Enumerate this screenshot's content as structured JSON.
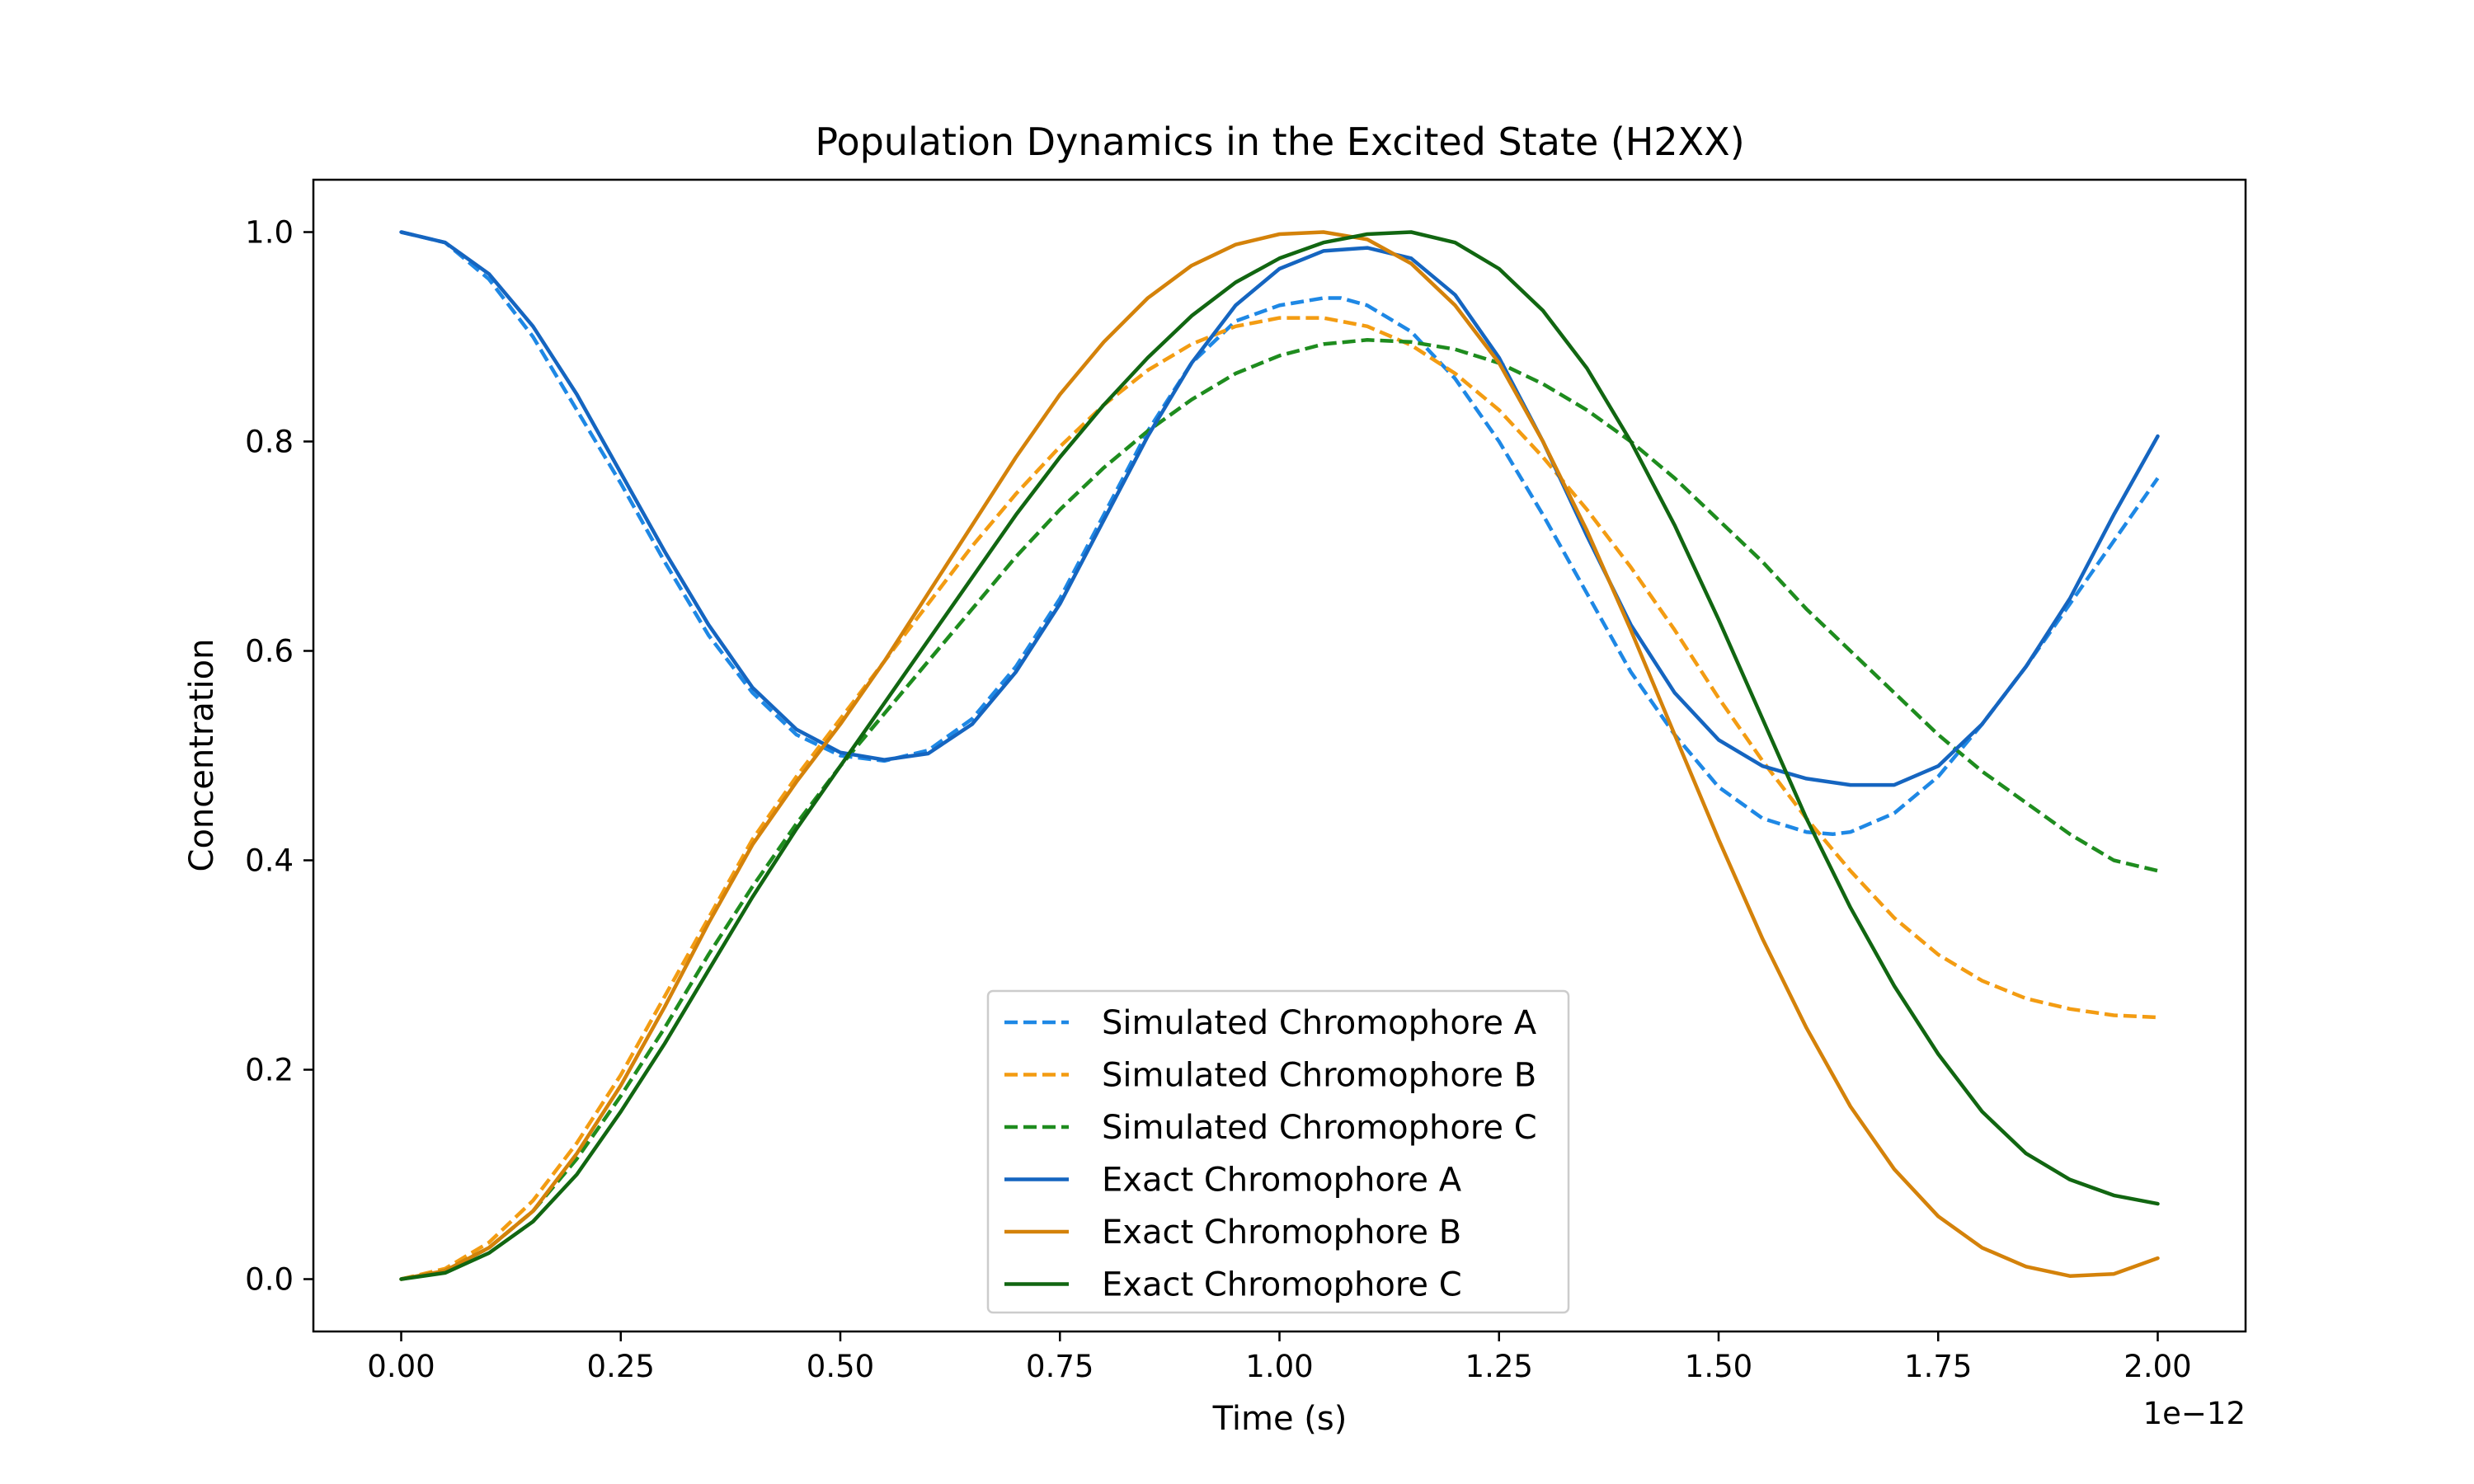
{
  "chart_data": {
    "type": "line",
    "title": "Population Dynamics in the Excited State (H2XX)",
    "xlabel": "Time (s)",
    "ylabel": "Concentration",
    "x_offset_label": "1e−12",
    "xlim": [
      -0.1,
      2.1
    ],
    "ylim": [
      -0.05,
      1.05
    ],
    "x_ticks": [
      0.0,
      0.25,
      0.5,
      0.75,
      1.0,
      1.25,
      1.5,
      1.75,
      2.0
    ],
    "x_tick_labels": [
      "0.00",
      "0.25",
      "0.50",
      "0.75",
      "1.00",
      "1.25",
      "1.50",
      "1.75",
      "2.00"
    ],
    "y_ticks": [
      0.0,
      0.2,
      0.4,
      0.6,
      0.8,
      1.0
    ],
    "y_tick_labels": [
      "0.0",
      "0.2",
      "0.4",
      "0.6",
      "0.8",
      "1.0"
    ],
    "grid": false,
    "legend_position": "lower-center",
    "series": [
      {
        "name": "Simulated Chromophore A",
        "color": "#1e88e5",
        "style": "dashed",
        "x": [
          0.0,
          0.05,
          0.1,
          0.15,
          0.2,
          0.25,
          0.3,
          0.35,
          0.4,
          0.45,
          0.5,
          0.55,
          0.6,
          0.65,
          0.7,
          0.75,
          0.8,
          0.85,
          0.9,
          0.95,
          1.0,
          1.05,
          1.07,
          1.1,
          1.15,
          1.2,
          1.25,
          1.3,
          1.35,
          1.4,
          1.45,
          1.5,
          1.55,
          1.6,
          1.63,
          1.65,
          1.7,
          1.75,
          1.8,
          1.85,
          1.9,
          1.95,
          2.0
        ],
        "y": [
          1.0,
          0.99,
          0.955,
          0.9,
          0.83,
          0.76,
          0.685,
          0.615,
          0.56,
          0.52,
          0.5,
          0.495,
          0.505,
          0.535,
          0.585,
          0.65,
          0.73,
          0.81,
          0.875,
          0.915,
          0.93,
          0.937,
          0.937,
          0.93,
          0.905,
          0.86,
          0.8,
          0.73,
          0.655,
          0.58,
          0.52,
          0.47,
          0.44,
          0.427,
          0.425,
          0.427,
          0.445,
          0.48,
          0.53,
          0.585,
          0.645,
          0.705,
          0.765
        ]
      },
      {
        "name": "Simulated Chromophore B",
        "color": "#f39c12",
        "style": "dashed",
        "x": [
          0.0,
          0.05,
          0.1,
          0.15,
          0.2,
          0.25,
          0.3,
          0.35,
          0.4,
          0.45,
          0.5,
          0.55,
          0.6,
          0.65,
          0.7,
          0.75,
          0.8,
          0.85,
          0.9,
          0.95,
          1.0,
          1.05,
          1.1,
          1.15,
          1.2,
          1.25,
          1.3,
          1.35,
          1.4,
          1.45,
          1.5,
          1.55,
          1.6,
          1.65,
          1.7,
          1.75,
          1.8,
          1.85,
          1.9,
          1.95,
          2.0
        ],
        "y": [
          0.0,
          0.01,
          0.035,
          0.075,
          0.13,
          0.195,
          0.27,
          0.345,
          0.42,
          0.48,
          0.535,
          0.59,
          0.645,
          0.7,
          0.75,
          0.795,
          0.835,
          0.868,
          0.893,
          0.91,
          0.918,
          0.918,
          0.91,
          0.892,
          0.865,
          0.83,
          0.785,
          0.735,
          0.68,
          0.62,
          0.555,
          0.495,
          0.44,
          0.39,
          0.345,
          0.31,
          0.285,
          0.268,
          0.258,
          0.252,
          0.25
        ]
      },
      {
        "name": "Simulated Chromophore C",
        "color": "#1e8c1e",
        "style": "dashed",
        "x": [
          0.0,
          0.05,
          0.1,
          0.15,
          0.2,
          0.25,
          0.3,
          0.35,
          0.4,
          0.45,
          0.5,
          0.55,
          0.6,
          0.65,
          0.7,
          0.75,
          0.8,
          0.85,
          0.9,
          0.95,
          1.0,
          1.05,
          1.1,
          1.15,
          1.2,
          1.25,
          1.3,
          1.35,
          1.4,
          1.45,
          1.5,
          1.55,
          1.6,
          1.65,
          1.7,
          1.75,
          1.8,
          1.85,
          1.9,
          1.95,
          2.0
        ],
        "y": [
          0.0,
          0.008,
          0.03,
          0.065,
          0.115,
          0.175,
          0.24,
          0.31,
          0.375,
          0.435,
          0.49,
          0.54,
          0.59,
          0.64,
          0.69,
          0.735,
          0.775,
          0.81,
          0.84,
          0.865,
          0.882,
          0.893,
          0.897,
          0.895,
          0.888,
          0.875,
          0.855,
          0.83,
          0.8,
          0.765,
          0.725,
          0.685,
          0.64,
          0.6,
          0.56,
          0.52,
          0.485,
          0.455,
          0.425,
          0.4,
          0.39
        ]
      },
      {
        "name": "Exact Chromophore A",
        "color": "#1565c0",
        "style": "solid",
        "x": [
          0.0,
          0.05,
          0.1,
          0.15,
          0.2,
          0.25,
          0.3,
          0.35,
          0.4,
          0.45,
          0.5,
          0.55,
          0.6,
          0.65,
          0.7,
          0.75,
          0.8,
          0.85,
          0.9,
          0.95,
          1.0,
          1.05,
          1.1,
          1.15,
          1.2,
          1.25,
          1.3,
          1.35,
          1.4,
          1.45,
          1.5,
          1.55,
          1.6,
          1.65,
          1.7,
          1.75,
          1.8,
          1.85,
          1.9,
          1.95,
          2.0
        ],
        "y": [
          1.0,
          0.99,
          0.96,
          0.91,
          0.845,
          0.77,
          0.695,
          0.625,
          0.565,
          0.525,
          0.503,
          0.496,
          0.502,
          0.53,
          0.58,
          0.645,
          0.725,
          0.805,
          0.875,
          0.93,
          0.965,
          0.982,
          0.985,
          0.975,
          0.94,
          0.88,
          0.8,
          0.71,
          0.625,
          0.56,
          0.515,
          0.49,
          0.478,
          0.472,
          0.472,
          0.49,
          0.53,
          0.585,
          0.65,
          0.73,
          0.805
        ]
      },
      {
        "name": "Exact Chromophore B",
        "color": "#d4820a",
        "style": "solid",
        "x": [
          0.0,
          0.05,
          0.1,
          0.15,
          0.2,
          0.25,
          0.3,
          0.35,
          0.4,
          0.45,
          0.5,
          0.55,
          0.6,
          0.65,
          0.7,
          0.75,
          0.8,
          0.85,
          0.9,
          0.95,
          1.0,
          1.05,
          1.1,
          1.15,
          1.2,
          1.25,
          1.3,
          1.35,
          1.4,
          1.45,
          1.5,
          1.55,
          1.6,
          1.65,
          1.7,
          1.75,
          1.8,
          1.85,
          1.9,
          1.95,
          2.0
        ],
        "y": [
          0.0,
          0.008,
          0.03,
          0.065,
          0.12,
          0.185,
          0.26,
          0.34,
          0.415,
          0.475,
          0.53,
          0.59,
          0.655,
          0.72,
          0.785,
          0.845,
          0.895,
          0.937,
          0.968,
          0.988,
          0.998,
          1.0,
          0.993,
          0.97,
          0.93,
          0.875,
          0.8,
          0.715,
          0.62,
          0.52,
          0.42,
          0.325,
          0.24,
          0.165,
          0.105,
          0.06,
          0.03,
          0.012,
          0.003,
          0.005,
          0.02
        ]
      },
      {
        "name": "Exact Chromophore C",
        "color": "#116611",
        "style": "solid",
        "x": [
          0.0,
          0.05,
          0.1,
          0.15,
          0.2,
          0.25,
          0.3,
          0.35,
          0.4,
          0.45,
          0.5,
          0.55,
          0.6,
          0.65,
          0.7,
          0.75,
          0.8,
          0.85,
          0.9,
          0.95,
          1.0,
          1.05,
          1.1,
          1.15,
          1.2,
          1.25,
          1.3,
          1.35,
          1.4,
          1.45,
          1.5,
          1.55,
          1.6,
          1.65,
          1.7,
          1.75,
          1.8,
          1.85,
          1.9,
          1.95,
          2.0
        ],
        "y": [
          0.0,
          0.006,
          0.025,
          0.055,
          0.1,
          0.16,
          0.225,
          0.295,
          0.365,
          0.43,
          0.49,
          0.55,
          0.61,
          0.67,
          0.73,
          0.785,
          0.835,
          0.88,
          0.92,
          0.952,
          0.975,
          0.99,
          0.998,
          1.0,
          0.99,
          0.965,
          0.925,
          0.87,
          0.8,
          0.72,
          0.63,
          0.535,
          0.44,
          0.355,
          0.28,
          0.215,
          0.16,
          0.12,
          0.095,
          0.08,
          0.072
        ]
      }
    ]
  }
}
